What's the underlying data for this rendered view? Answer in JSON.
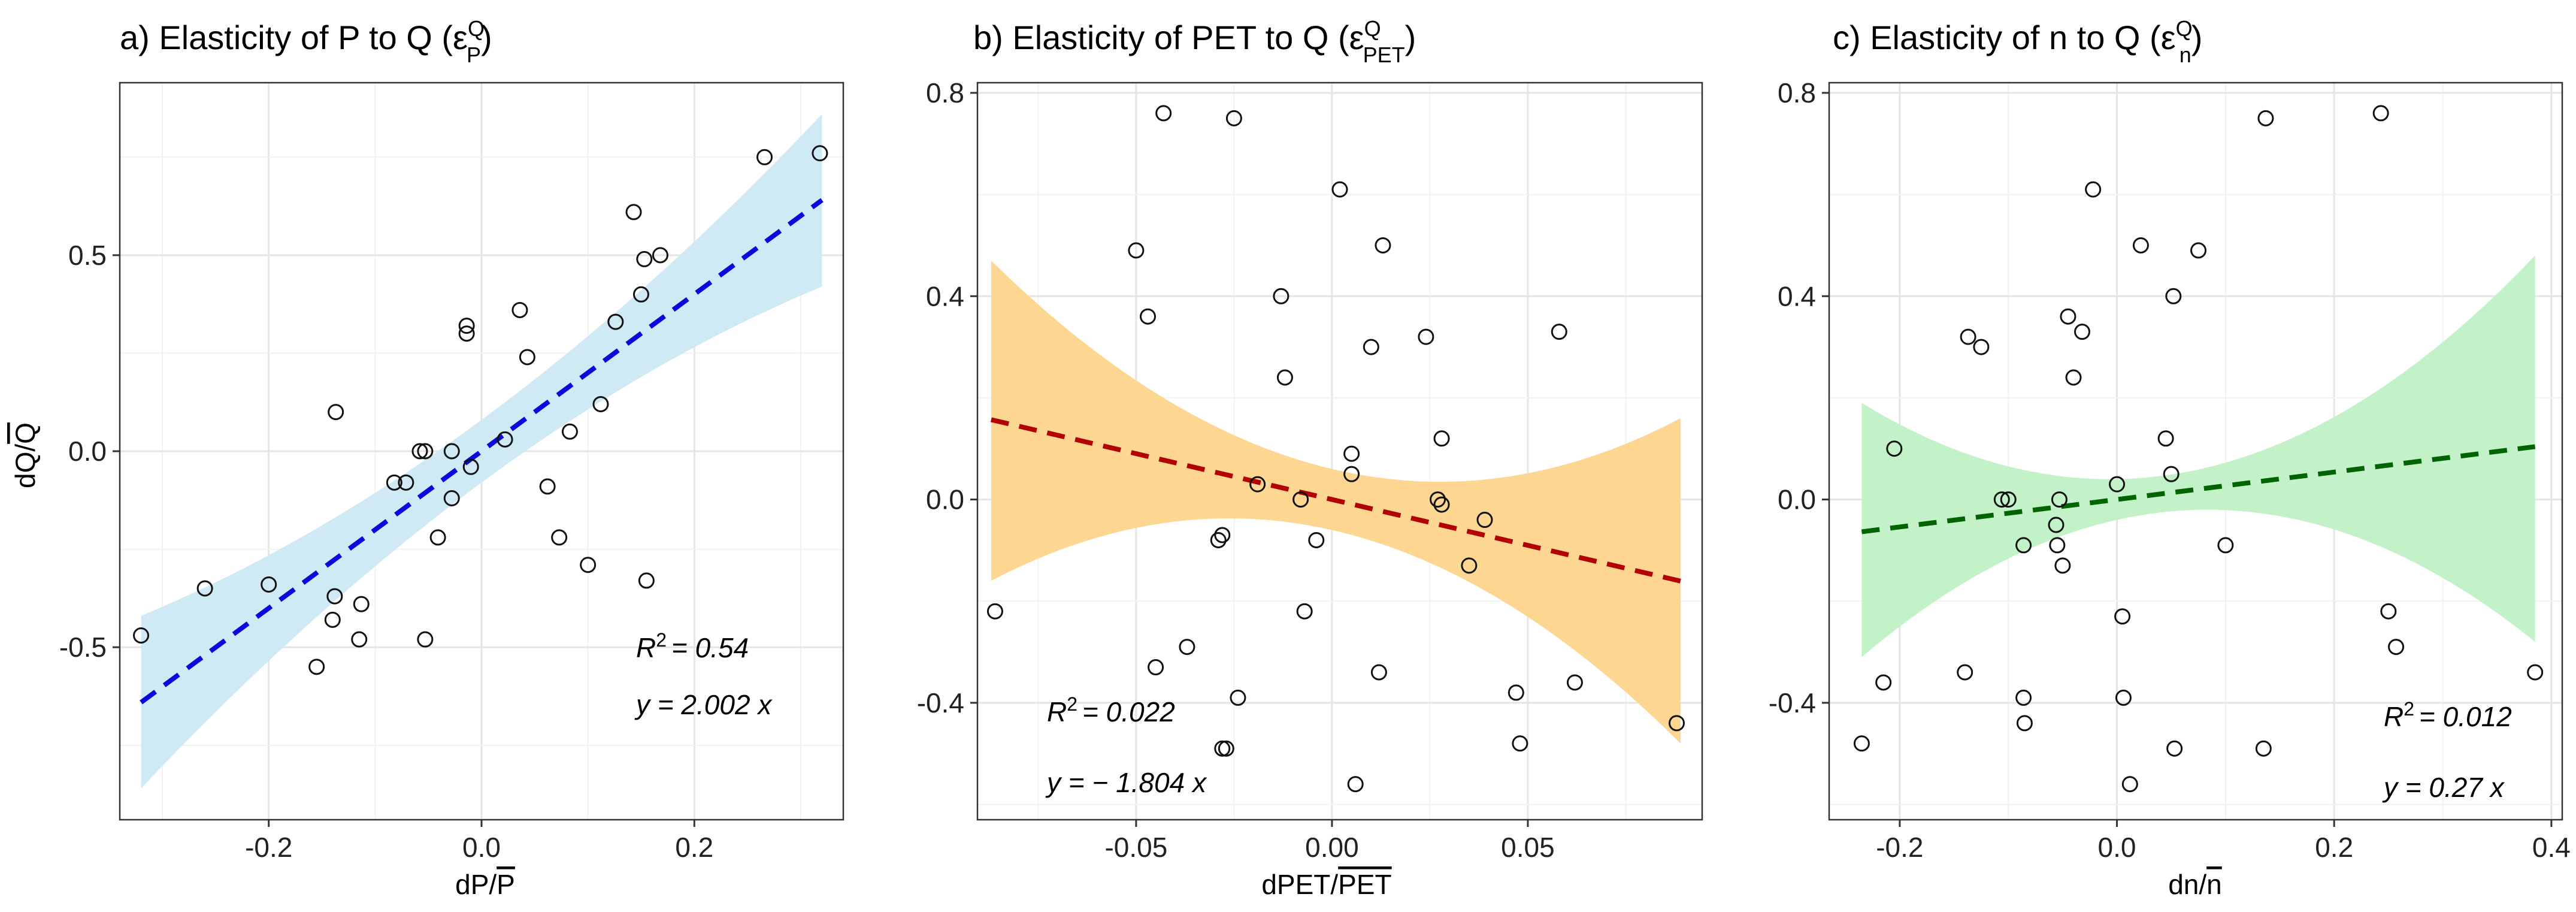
{
  "chart_data": [
    {
      "type": "scatter",
      "id": "a",
      "title": "a) Elasticity of P to Q (ε",
      "title_sup": "Q",
      "title_sub": "P",
      "title_close": ")",
      "xlabel": "dP/P",
      "xlabel_num": "dP/",
      "xlabel_den": "P",
      "ylabel": "dQ/Q",
      "ylabel_num": "dQ/",
      "ylabel_den": "Q",
      "xlim": [
        -0.34,
        0.34
      ],
      "ylim": [
        -0.94,
        0.94
      ],
      "xticks": [
        -0.2,
        0.0,
        0.2
      ],
      "xtick_labels": [
        "-0.2",
        "0.0",
        "0.2"
      ],
      "yticks": [
        -0.5,
        0.0,
        0.5
      ],
      "ytick_labels": [
        "-0.5",
        "0.0",
        "0.5"
      ],
      "fit": {
        "slope": 2.002,
        "x_range": [
          -0.32,
          0.32
        ],
        "color": "#0a0adc",
        "band_color": "#cfeaf5",
        "band": [
          [
            -0.32,
            -0.86,
            -0.42
          ],
          [
            0.0,
            -0.08,
            0.08
          ],
          [
            0.32,
            0.42,
            0.86
          ]
        ]
      },
      "annotation_r2": "= 0.54",
      "annotation_eq": "y = 2.002 x",
      "points": [
        [
          -0.32,
          -0.47
        ],
        [
          -0.26,
          -0.35
        ],
        [
          -0.2,
          -0.34
        ],
        [
          -0.155,
          -0.55
        ],
        [
          -0.14,
          -0.43
        ],
        [
          -0.138,
          -0.37
        ],
        [
          -0.137,
          0.1
        ],
        [
          -0.115,
          -0.48
        ],
        [
          -0.113,
          -0.39
        ],
        [
          -0.082,
          -0.08
        ],
        [
          -0.071,
          -0.08
        ],
        [
          -0.058,
          0.0
        ],
        [
          -0.053,
          -0.48
        ],
        [
          -0.053,
          0.0
        ],
        [
          -0.041,
          -0.22
        ],
        [
          -0.028,
          0.0
        ],
        [
          -0.028,
          -0.12
        ],
        [
          -0.014,
          0.3
        ],
        [
          -0.014,
          0.32
        ],
        [
          -0.01,
          -0.04
        ],
        [
          0.022,
          0.03
        ],
        [
          0.036,
          0.36
        ],
        [
          0.043,
          0.24
        ],
        [
          0.062,
          -0.09
        ],
        [
          0.073,
          -0.22
        ],
        [
          0.083,
          0.05
        ],
        [
          0.1,
          -0.29
        ],
        [
          0.112,
          0.12
        ],
        [
          0.126,
          0.33
        ],
        [
          0.143,
          0.61
        ],
        [
          0.15,
          0.4
        ],
        [
          0.153,
          0.49
        ],
        [
          0.155,
          -0.33
        ],
        [
          0.168,
          0.5
        ],
        [
          0.266,
          0.75
        ],
        [
          0.318,
          0.76
        ]
      ]
    },
    {
      "type": "scatter",
      "id": "b",
      "title": "b) Elasticity of PET to Q (ε",
      "title_sup": "Q",
      "title_sub": "PET",
      "title_close": ")",
      "xlabel": "dPET/PET",
      "xlabel_num": "dPET/",
      "xlabel_den": "PET",
      "ylabel": "",
      "xlim": [
        -0.0905,
        0.0945
      ],
      "ylim": [
        -0.63,
        0.82
      ],
      "xticks": [
        -0.05,
        0.0,
        0.05
      ],
      "xtick_labels": [
        "-0.05",
        "0.00",
        "0.05"
      ],
      "yticks": [
        -0.4,
        0.0,
        0.4,
        0.8
      ],
      "ytick_labels": [
        "-0.4",
        "0.0",
        "0.4",
        "0.8"
      ],
      "fit": {
        "slope": -1.804,
        "x_range": [
          -0.087,
          0.089
        ],
        "color": "#b30000",
        "band_color": "#fdd792",
        "band": [
          [
            -0.087,
            -0.16,
            0.47
          ],
          [
            0.0,
            -0.06,
            0.06
          ],
          [
            0.089,
            -0.48,
            0.16
          ]
        ]
      },
      "annotation_r2": "= 0.022",
      "annotation_eq": "y = − 1.804 x",
      "points": [
        [
          -0.086,
          -0.22
        ],
        [
          -0.05,
          0.49
        ],
        [
          -0.047,
          0.36
        ],
        [
          -0.045,
          -0.33
        ],
        [
          -0.043,
          0.76
        ],
        [
          -0.037,
          -0.29
        ],
        [
          -0.029,
          -0.08
        ],
        [
          -0.028,
          -0.07
        ],
        [
          -0.028,
          -0.49
        ],
        [
          -0.027,
          -0.49
        ],
        [
          -0.025,
          0.75
        ],
        [
          -0.024,
          -0.39
        ],
        [
          -0.019,
          0.03
        ],
        [
          -0.013,
          0.4
        ],
        [
          -0.012,
          0.24
        ],
        [
          -0.008,
          0.0
        ],
        [
          -0.007,
          -0.22
        ],
        [
          -0.004,
          -0.08
        ],
        [
          0.002,
          0.61
        ],
        [
          0.005,
          0.09
        ],
        [
          0.005,
          0.05
        ],
        [
          0.006,
          -0.56
        ],
        [
          0.01,
          0.3
        ],
        [
          0.012,
          -0.34
        ],
        [
          0.013,
          0.5
        ],
        [
          0.024,
          0.32
        ],
        [
          0.027,
          0.0
        ],
        [
          0.028,
          0.12
        ],
        [
          0.028,
          -0.01
        ],
        [
          0.035,
          -0.13
        ],
        [
          0.039,
          -0.04
        ],
        [
          0.047,
          -0.38
        ],
        [
          0.048,
          -0.48
        ],
        [
          0.058,
          0.33
        ],
        [
          0.062,
          -0.36
        ],
        [
          0.088,
          -0.44
        ]
      ]
    },
    {
      "type": "scatter",
      "id": "c",
      "title": "c) Elasticity of n to Q (ε",
      "title_sup": "Q",
      "title_sub": "n",
      "title_close": ")",
      "xlabel": "dn/n",
      "xlabel_num": "dn/",
      "xlabel_den": "n",
      "ylabel": "",
      "xlim": [
        -0.265,
        0.41
      ],
      "ylim": [
        -0.63,
        0.82
      ],
      "xticks": [
        -0.2,
        0.0,
        0.2,
        0.4
      ],
      "xtick_labels": [
        "-0.2",
        "0.0",
        "0.2",
        "0.4"
      ],
      "yticks": [
        -0.4,
        0.0,
        0.4,
        0.8
      ],
      "ytick_labels": [
        "-0.4",
        "0.0",
        "0.4",
        "0.8"
      ],
      "fit": {
        "slope": 0.27,
        "x_range": [
          -0.235,
          0.385
        ],
        "color": "#006400",
        "band_color": "#c3f2c9",
        "band": [
          [
            -0.235,
            -0.31,
            0.19
          ],
          [
            0.0,
            -0.04,
            0.04
          ],
          [
            0.385,
            -0.28,
            0.48
          ]
        ]
      },
      "annotation_r2": "= 0.012",
      "annotation_eq": "y = 0.27 x",
      "points": [
        [
          -0.235,
          -0.48
        ],
        [
          -0.215,
          -0.36
        ],
        [
          -0.205,
          0.1
        ],
        [
          -0.14,
          -0.34
        ],
        [
          -0.137,
          0.32
        ],
        [
          -0.125,
          0.3
        ],
        [
          -0.106,
          0.0
        ],
        [
          -0.1,
          0.0
        ],
        [
          -0.086,
          -0.09
        ],
        [
          -0.086,
          -0.39
        ],
        [
          -0.085,
          -0.44
        ],
        [
          -0.056,
          -0.05
        ],
        [
          -0.055,
          -0.09
        ],
        [
          -0.053,
          0.0
        ],
        [
          -0.05,
          -0.13
        ],
        [
          -0.045,
          0.36
        ],
        [
          -0.04,
          0.24
        ],
        [
          -0.032,
          0.33
        ],
        [
          -0.022,
          0.61
        ],
        [
          0.0,
          0.03
        ],
        [
          0.005,
          -0.23
        ],
        [
          0.006,
          -0.39
        ],
        [
          0.012,
          -0.56
        ],
        [
          0.022,
          0.5
        ],
        [
          0.045,
          0.12
        ],
        [
          0.05,
          0.05
        ],
        [
          0.052,
          0.4
        ],
        [
          0.053,
          -0.49
        ],
        [
          0.075,
          0.49
        ],
        [
          0.1,
          -0.09
        ],
        [
          0.135,
          -0.49
        ],
        [
          0.137,
          0.75
        ],
        [
          0.243,
          0.76
        ],
        [
          0.25,
          -0.22
        ],
        [
          0.257,
          -0.29
        ],
        [
          0.385,
          -0.34
        ]
      ]
    }
  ]
}
